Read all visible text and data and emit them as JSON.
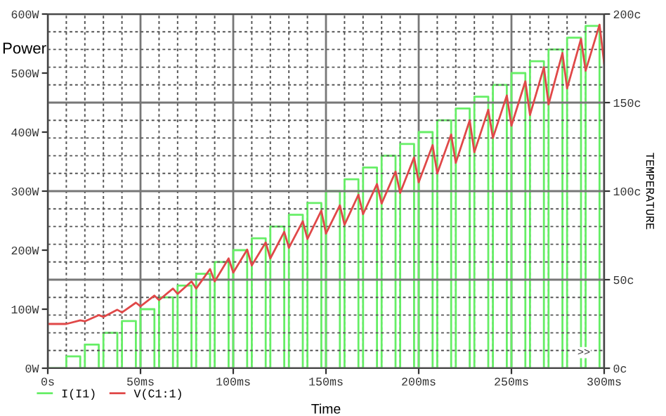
{
  "chart_data": {
    "type": "line",
    "xlabel": "Time",
    "ylabel": "Power",
    "y2label": "TEMPERATURE",
    "xlim": [
      0,
      300
    ],
    "xticks": [
      {
        "value": 0,
        "label": "0s"
      },
      {
        "value": 50,
        "label": "50ms"
      },
      {
        "value": 100,
        "label": "100ms"
      },
      {
        "value": 150,
        "label": "150ms"
      },
      {
        "value": 200,
        "label": "200ms"
      },
      {
        "value": 250,
        "label": "250ms"
      },
      {
        "value": 300,
        "label": "300ms"
      }
    ],
    "ylim": [
      0,
      600
    ],
    "yticks": [
      {
        "value": 0,
        "label": "0W"
      },
      {
        "value": 100,
        "label": "100W"
      },
      {
        "value": 200,
        "label": "200W"
      },
      {
        "value": 300,
        "label": "300W"
      },
      {
        "value": 400,
        "label": "400W"
      },
      {
        "value": 500,
        "label": "500W"
      },
      {
        "value": 600,
        "label": "600W"
      }
    ],
    "y2lim": [
      0,
      200
    ],
    "y2ticks": [
      {
        "value": 0,
        "label": "0c"
      },
      {
        "value": 50,
        "label": "50c"
      },
      {
        "value": 100,
        "label": "100c"
      },
      {
        "value": 150,
        "label": "150c"
      },
      {
        "value": 200,
        "label": "200c"
      }
    ],
    "grid": true,
    "legend": "bottom left",
    "annotations": [
      ">>"
    ],
    "series": [
      {
        "name": "I(I1)",
        "type": "step",
        "color": "#66ee66",
        "x": [
          0,
          10,
          17.5,
          20,
          27.5,
          30,
          37.5,
          40,
          47.5,
          50,
          57.5,
          60,
          67.5,
          70,
          77.5,
          80,
          87.5,
          90,
          97.5,
          100,
          107.5,
          110,
          117.5,
          120,
          127.5,
          130,
          137.5,
          140,
          147.5,
          150,
          157.5,
          160,
          167.5,
          170,
          177.5,
          180,
          187.5,
          190,
          197.5,
          200,
          207.5,
          210,
          217.5,
          220,
          227.5,
          230,
          237.5,
          240,
          247.5,
          250,
          257.5,
          260,
          267.5,
          270,
          277.5,
          280,
          287.5,
          290,
          297.5,
          300
        ],
        "values": [
          0,
          20,
          0,
          40,
          0,
          60,
          0,
          80,
          0,
          100,
          0,
          120,
          0,
          140,
          0,
          160,
          0,
          180,
          0,
          200,
          0,
          220,
          0,
          240,
          0,
          260,
          0,
          280,
          0,
          300,
          0,
          320,
          0,
          340,
          0,
          360,
          0,
          380,
          0,
          400,
          0,
          420,
          0,
          440,
          0,
          460,
          0,
          480,
          0,
          500,
          0,
          520,
          0,
          540,
          0,
          560,
          0,
          580,
          0,
          0
        ]
      },
      {
        "name": "V(C1:1)",
        "axis": "y2",
        "color": "#e04848",
        "x": [
          0,
          10,
          17.5,
          20,
          27.5,
          30,
          37.5,
          40,
          47.5,
          50,
          57.5,
          60,
          67.5,
          70,
          77.5,
          80,
          87.5,
          90,
          97.5,
          100,
          107.5,
          110,
          117.5,
          120,
          127.5,
          130,
          137.5,
          140,
          147.5,
          150,
          157.5,
          160,
          167.5,
          170,
          177.5,
          180,
          187.5,
          190,
          197.5,
          200,
          207.5,
          210,
          217.5,
          220,
          227.5,
          230,
          237.5,
          240,
          247.5,
          250,
          257.5,
          260,
          267.5,
          270,
          277.5,
          280,
          287.5,
          290,
          297.5,
          300
        ],
        "values": [
          25,
          25,
          27,
          26.5,
          30,
          29,
          33,
          31.5,
          37,
          35,
          41,
          38.5,
          45,
          42,
          49,
          45,
          56,
          49,
          62,
          54,
          67,
          58,
          71,
          62,
          77,
          68,
          83,
          73,
          89,
          76,
          92,
          81,
          98,
          87,
          104,
          93,
          111,
          99,
          119,
          105,
          126,
          110,
          132,
          116,
          140,
          122,
          146,
          130,
          154,
          137,
          162,
          143,
          170,
          149,
          178,
          158,
          186,
          168,
          194,
          172
        ]
      }
    ]
  }
}
